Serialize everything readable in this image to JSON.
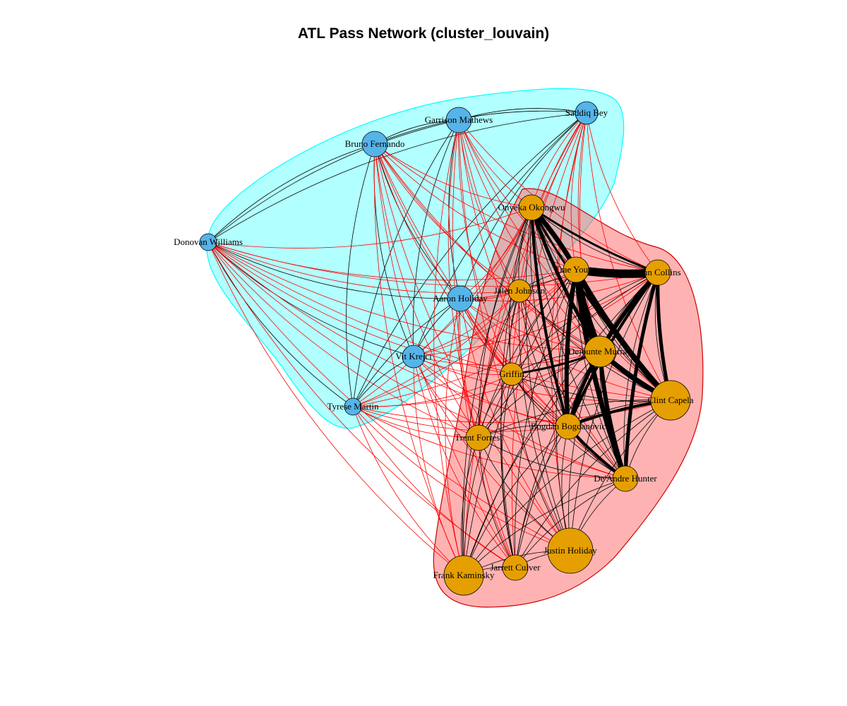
{
  "title": "ATL Pass Network (cluster_louvain)",
  "colors": {
    "group1_node": "#56B4E9",
    "group2_node": "#E69F00",
    "group1_hull": "#00FFFF",
    "group2_hull": "#FF6666",
    "between_edge": "#FF0000",
    "within_edge": "#000000"
  },
  "nodes": [
    {
      "id": "saddiq",
      "label": "Saddiq Bey",
      "group": 1,
      "size": 2
    },
    {
      "id": "garrison",
      "label": "Garrison Mathews",
      "group": 1,
      "size": 3
    },
    {
      "id": "bruno",
      "label": "Bruno Fernando",
      "group": 1,
      "size": 3
    },
    {
      "id": "donovan",
      "label": "Donovan Williams",
      "group": 1,
      "size": 1
    },
    {
      "id": "aaron",
      "label": "Aaron Holiday",
      "group": 1,
      "size": 3
    },
    {
      "id": "vit",
      "label": "Vit Krejci",
      "group": 1,
      "size": 2
    },
    {
      "id": "tyrese",
      "label": "Tyrese Martin",
      "group": 1,
      "size": 1
    },
    {
      "id": "onyeka",
      "label": "Onyeka Okongwu",
      "group": 2,
      "size": 3
    },
    {
      "id": "trae",
      "label": "Trae Young",
      "group": 2,
      "size": 3
    },
    {
      "id": "john",
      "label": "John Collins",
      "group": 2,
      "size": 3
    },
    {
      "id": "jalen",
      "label": "Jalen Johnson",
      "group": 2,
      "size": 2
    },
    {
      "id": "dejounte",
      "label": "Dejounte Murray",
      "group": 2,
      "size": 4
    },
    {
      "id": "griffin",
      "label": "Griffin",
      "group": 2,
      "size": 2
    },
    {
      "id": "clint",
      "label": "Clint Capela",
      "group": 2,
      "size": 5
    },
    {
      "id": "bogdan",
      "label": "Bogdan Bogdanovic",
      "group": 2,
      "size": 3
    },
    {
      "id": "trent",
      "label": "Trent Forrest",
      "group": 2,
      "size": 3
    },
    {
      "id": "deandre",
      "label": "De'Andre Hunter",
      "group": 2,
      "size": 3
    },
    {
      "id": "justin",
      "label": "Justin Holiday",
      "group": 2,
      "size": 6
    },
    {
      "id": "jarrett",
      "label": "Jarrett Culver",
      "group": 2,
      "size": 3
    },
    {
      "id": "frank",
      "label": "Frank Kaminsky",
      "group": 2,
      "size": 5
    }
  ],
  "heavy_edges": [
    [
      "trae",
      "john",
      12
    ],
    [
      "trae",
      "dejounte",
      10
    ],
    [
      "trae",
      "clint",
      8
    ],
    [
      "trae",
      "onyeka",
      7
    ],
    [
      "trae",
      "bogdan",
      6
    ],
    [
      "trae",
      "deandre",
      7
    ],
    [
      "john",
      "dejounte",
      6
    ],
    [
      "john",
      "clint",
      5
    ],
    [
      "john",
      "deandre",
      5
    ],
    [
      "john",
      "bogdan",
      4
    ],
    [
      "dejounte",
      "clint",
      7
    ],
    [
      "dejounte",
      "deandre",
      6
    ],
    [
      "dejounte",
      "bogdan",
      5
    ],
    [
      "clint",
      "bogdan",
      4
    ],
    [
      "onyeka",
      "dejounte",
      5
    ],
    [
      "onyeka",
      "bogdan",
      4
    ],
    [
      "onyeka",
      "clint",
      3
    ],
    [
      "griffin",
      "dejounte",
      3
    ],
    [
      "bogdan",
      "deandre",
      4
    ],
    [
      "onyeka",
      "john",
      3
    ]
  ]
}
